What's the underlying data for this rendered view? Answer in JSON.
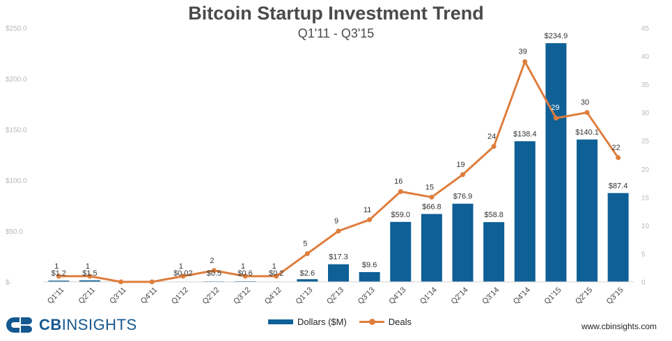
{
  "title": "Bitcoin Startup Investment Trend",
  "subtitle": "Q1'11 - Q3'15",
  "brand": {
    "name_bold": "CB",
    "name_rest": "INSIGHTS",
    "website": "www.cbinsights.com"
  },
  "colors": {
    "bars": "#0e6096",
    "line": "#de7d3d",
    "axis_text": "#b9b9b9",
    "label_text": "#333333"
  },
  "chart_data": {
    "type": "bar+line",
    "categories": [
      "Q1'11",
      "Q2'11",
      "Q3'11",
      "Q4'11",
      "Q1'12",
      "Q2'12",
      "Q3'12",
      "Q4'12",
      "Q1'13",
      "Q2'13",
      "Q3'13",
      "Q4'13",
      "Q1'14",
      "Q2'14",
      "Q3'14",
      "Q4'14",
      "Q1'15",
      "Q2'15",
      "Q3'15"
    ],
    "series": [
      {
        "name": "Dollars ($M)",
        "type": "bar",
        "axis": "left",
        "values": [
          1.2,
          1.5,
          0,
          0,
          0.02,
          0.5,
          0.6,
          0.2,
          2.6,
          17.3,
          9.6,
          59.0,
          66.8,
          76.9,
          58.8,
          138.4,
          234.9,
          140.1,
          87.4
        ],
        "labels": [
          "$1.2",
          "$1.5",
          "",
          "",
          "$0.02",
          "$0.5",
          "$0.6",
          "$0.2",
          "$2.6",
          "$17.3",
          "$9.6",
          "$59.0",
          "$66.8",
          "$76.9",
          "$58.8",
          "$138.4",
          "$234.9",
          "$140.1",
          "$87.4"
        ]
      },
      {
        "name": "Deals",
        "type": "line",
        "axis": "right",
        "values": [
          1,
          1,
          0,
          0,
          1,
          2,
          1,
          1,
          5,
          9,
          11,
          16,
          15,
          19,
          24,
          39,
          29,
          30,
          22
        ],
        "labels": [
          "1",
          "1",
          "",
          "",
          "1",
          "2",
          "1",
          "1",
          "5",
          "9",
          "11",
          "16",
          "15",
          "19",
          "24",
          "39",
          "29",
          "30",
          "22"
        ]
      }
    ],
    "left_axis": {
      "range": [
        0,
        250
      ],
      "ticks": [
        0,
        50,
        100,
        150,
        200,
        250
      ],
      "tick_labels": [
        "$-",
        "$50.0",
        "$100.0",
        "$150.0",
        "$200.0",
        "$250.0"
      ]
    },
    "right_axis": {
      "range": [
        0,
        45
      ],
      "ticks": [
        0,
        5,
        10,
        15,
        20,
        25,
        30,
        35,
        40,
        45
      ],
      "tick_labels": [
        "0",
        "5",
        "10",
        "15",
        "20",
        "25",
        "30",
        "35",
        "40",
        "45"
      ]
    },
    "legend": {
      "position": "bottom",
      "entries": [
        "Dollars ($M)",
        "Deals"
      ]
    },
    "grid": false
  }
}
